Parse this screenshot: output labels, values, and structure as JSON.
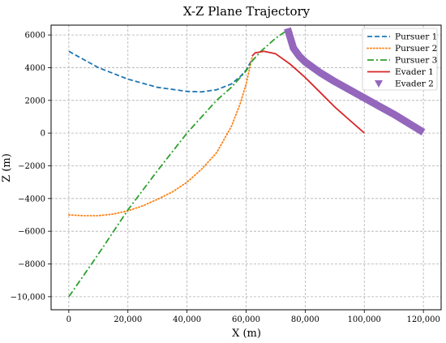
{
  "chart_data": {
    "type": "line",
    "title": "X-Z Plane Trajectory",
    "xlabel": "X (m)",
    "ylabel": "Z (m)",
    "xlim": [
      -6000,
      126000
    ],
    "ylim": [
      -10800,
      6600
    ],
    "grid": true,
    "legend_position": "top-right",
    "x_ticks": [
      0,
      20000,
      40000,
      60000,
      80000,
      100000,
      120000
    ],
    "x_tick_labels": [
      "0",
      "20,000",
      "40,000",
      "60,000",
      "80,000",
      "100,000",
      "120,000"
    ],
    "y_ticks": [
      -10000,
      -8000,
      -6000,
      -4000,
      -2000,
      0,
      2000,
      4000,
      6000
    ],
    "y_tick_labels": [
      "−10,000",
      "−8000",
      "−6000",
      "−4000",
      "−2000",
      "0",
      "2000",
      "4000",
      "6000"
    ],
    "series": [
      {
        "name": "Pursuer 1",
        "color": "#1f77b4",
        "style": "dashed",
        "x": [
          0,
          10000,
          20000,
          30000,
          40000,
          45000,
          50000,
          55000,
          58000,
          60000,
          62000
        ],
        "y": [
          5000,
          4000,
          3300,
          2800,
          2550,
          2520,
          2650,
          3000,
          3450,
          3850,
          4500
        ]
      },
      {
        "name": "Pursuer 2",
        "color": "#ff7f0e",
        "style": "dotted",
        "x": [
          0,
          5000,
          10000,
          15000,
          20000,
          25000,
          30000,
          35000,
          40000,
          45000,
          50000,
          55000,
          58000,
          60000,
          61000,
          62000
        ],
        "y": [
          -5000,
          -5050,
          -5050,
          -4950,
          -4750,
          -4450,
          -4050,
          -3600,
          -3000,
          -2200,
          -1200,
          400,
          1800,
          3000,
          3800,
          4600
        ]
      },
      {
        "name": "Pursuer 3",
        "color": "#2ca02c",
        "style": "dashdot",
        "x": [
          0,
          10000,
          20000,
          30000,
          40000,
          50000,
          55000,
          60000,
          62000,
          65000,
          70000,
          74000
        ],
        "y": [
          -10000,
          -7400,
          -4700,
          -2300,
          0,
          2000,
          2800,
          3800,
          4400,
          5000,
          5800,
          6300
        ]
      },
      {
        "name": "Evader 1",
        "color": "#d62728",
        "style": "solid",
        "x": [
          62000,
          63000,
          66000,
          70000,
          75000,
          80000,
          85000,
          90000,
          95000,
          100000
        ],
        "y": [
          4700,
          4900,
          5000,
          4850,
          4200,
          3400,
          2500,
          1600,
          800,
          0
        ]
      },
      {
        "name": "Evader 2",
        "color": "#9467bd",
        "style": "thick",
        "x": [
          74000,
          76000,
          78000,
          80000,
          85000,
          90000,
          95000,
          100000,
          105000,
          110000,
          115000,
          120000
        ],
        "y": [
          6400,
          5200,
          4700,
          4350,
          3700,
          3150,
          2650,
          2150,
          1650,
          1150,
          600,
          50
        ]
      }
    ]
  }
}
